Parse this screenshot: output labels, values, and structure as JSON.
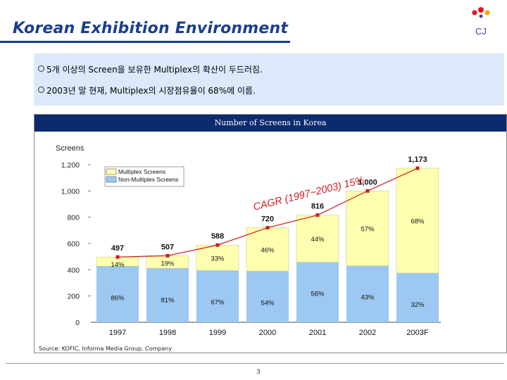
{
  "title": "Korean Exhibition Environment",
  "logo_text": "CJ",
  "bullets": [
    "5개 이상의 Screen을 보유한 Multiplex의 확산이 두드러짐.",
    "2003년 말 현재, Multiplex의 시장점유율이 68%에 이름."
  ],
  "source": "Source: KOFIC, Informa Media Group, Company",
  "page_number": "3",
  "colors": {
    "title": "#1c3f8a",
    "multiplex": "#ffffb0",
    "non_multiplex": "#9cc8f2",
    "line": "#d21c1c",
    "header": "#0c2a6e"
  },
  "chart_data": {
    "type": "bar",
    "title": "Number of Screens in Korea",
    "ylabel": "Screens",
    "xlabel": "",
    "ylim": [
      0,
      1200
    ],
    "yticks": [
      "0",
      "200",
      "400",
      "600",
      "800",
      "1,000",
      "1,200"
    ],
    "categories": [
      "1997",
      "1998",
      "1999",
      "2000",
      "2001",
      "2002",
      "2003F"
    ],
    "series": [
      {
        "name": "Non-Multiplex Screens",
        "values": [
          427,
          411,
          394,
          389,
          457,
          430,
          375
        ]
      },
      {
        "name": "Multiplex Screens",
        "values": [
          70,
          96,
          194,
          331,
          359,
          570,
          798
        ]
      }
    ],
    "totals": [
      497,
      507,
      588,
      720,
      816,
      1000,
      1173
    ],
    "total_labels": [
      "497",
      "507",
      "588",
      "720",
      "816",
      "1,000",
      "1,173"
    ],
    "multiplex_share_labels": [
      "14%",
      "19%",
      "33%",
      "46%",
      "44%",
      "57%",
      "68%"
    ],
    "non_multiplex_share_labels": [
      "86%",
      "81%",
      "67%",
      "54%",
      "56%",
      "43%",
      "32%"
    ],
    "legend": [
      "Multiplex Screens",
      "Non-Multiplex Screens"
    ],
    "annotation": "CAGR (1997~2003) 15%"
  }
}
